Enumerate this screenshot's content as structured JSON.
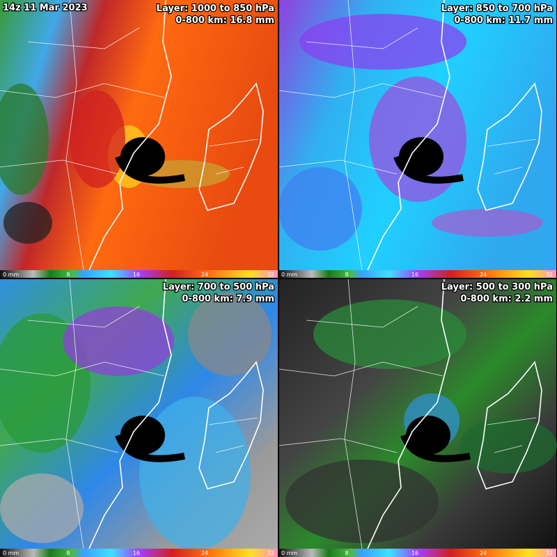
{
  "timestamp": "14z 11 Mar 2023",
  "panels": [
    {
      "layer": "Layer: 1000 to 850 hPa",
      "summary": "0-800 km: 16.8 mm",
      "colorbar": [
        "0 mm",
        "8",
        "16",
        "24",
        "32"
      ]
    },
    {
      "layer": "Layer: 850 to 700 hPa",
      "summary": "0-800 km: 11.7 mm",
      "colorbar": [
        "0 mm",
        "8",
        "16",
        "24",
        "32"
      ]
    },
    {
      "layer": "Layer: 700 to 500 hPa",
      "summary": "0-800 km: 7.9 mm",
      "colorbar": [
        "0 mm",
        "8",
        "16",
        "24",
        "32"
      ]
    },
    {
      "layer": "Layer: 500 to 300 hPa",
      "summary": "0-800 km: 2.2 mm",
      "colorbar": [
        "0 mm",
        "8",
        "16",
        "24",
        "32"
      ]
    }
  ]
}
